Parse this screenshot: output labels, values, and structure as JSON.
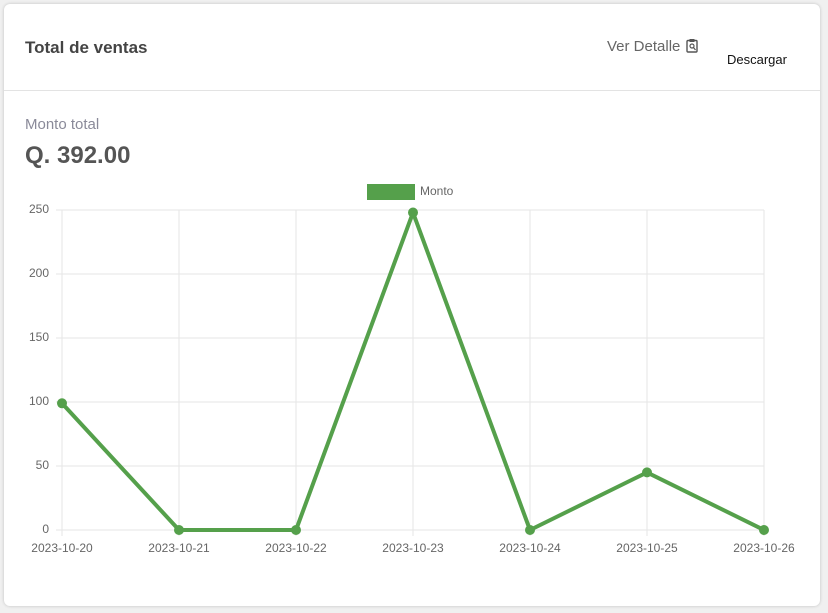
{
  "header": {
    "title": "Total de ventas",
    "link": "Ver Detalle",
    "button": "Descargar"
  },
  "summary": {
    "label": "Monto total",
    "value": "Q. 392.00"
  },
  "chart_data": {
    "type": "line",
    "categories": [
      "2023-10-20",
      "2023-10-21",
      "2023-10-22",
      "2023-10-23",
      "2023-10-24",
      "2023-10-25",
      "2023-10-26"
    ],
    "series": [
      {
        "name": "Monto",
        "color": "#55a04b",
        "values": [
          99,
          0,
          0,
          248,
          0,
          45,
          0
        ]
      }
    ],
    "ylim": [
      0,
      250
    ],
    "yticks": [
      0,
      50,
      100,
      150,
      200,
      250
    ],
    "grid": true,
    "legend": "top"
  }
}
